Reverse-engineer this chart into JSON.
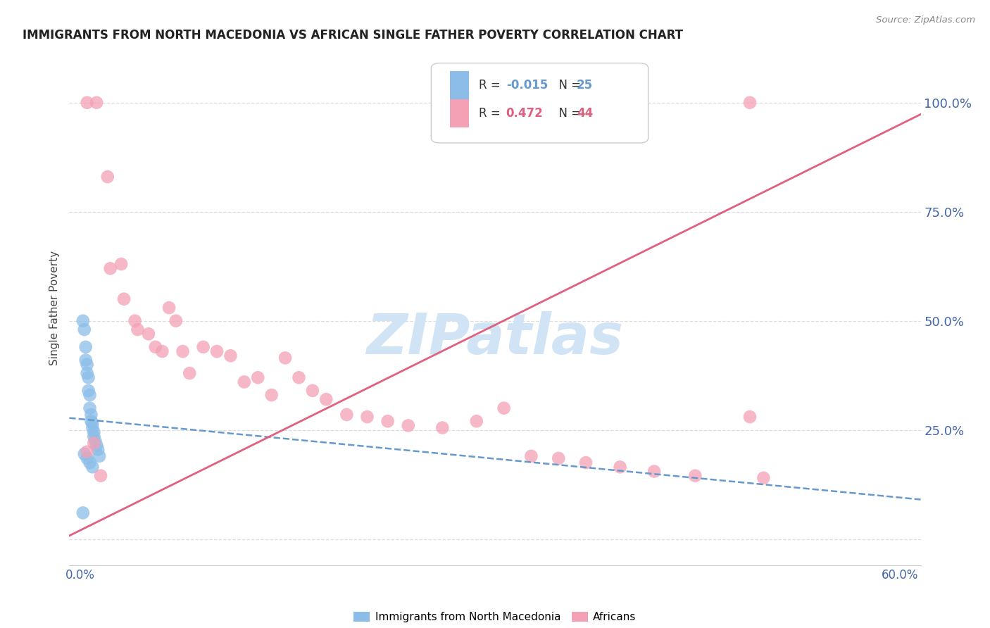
{
  "title": "IMMIGRANTS FROM NORTH MACEDONIA VS AFRICAN SINGLE FATHER POVERTY CORRELATION CHART",
  "source": "Source: ZipAtlas.com",
  "ylabel": "Single Father Poverty",
  "blue_R": -0.015,
  "blue_N": 25,
  "pink_R": 0.472,
  "pink_N": 44,
  "blue_color": "#8BBDE8",
  "pink_color": "#F4A0B5",
  "blue_trend_color": "#6699CC",
  "pink_trend_color": "#E06080",
  "watermark": "ZIPatlas",
  "watermark_color": "#D0E4F5",
  "legend_label_blue": "Immigrants from North Macedonia",
  "legend_label_pink": "Africans",
  "blue_x": [
    0.002,
    0.003,
    0.004,
    0.004,
    0.005,
    0.005,
    0.006,
    0.006,
    0.007,
    0.007,
    0.008,
    0.008,
    0.009,
    0.009,
    0.01,
    0.01,
    0.011,
    0.012,
    0.013,
    0.014,
    0.003,
    0.005,
    0.007,
    0.009,
    0.002
  ],
  "blue_y": [
    0.5,
    0.48,
    0.44,
    0.41,
    0.4,
    0.38,
    0.37,
    0.34,
    0.33,
    0.3,
    0.285,
    0.27,
    0.265,
    0.255,
    0.245,
    0.235,
    0.225,
    0.215,
    0.205,
    0.19,
    0.195,
    0.185,
    0.175,
    0.165,
    0.06
  ],
  "pink_x": [
    0.005,
    0.012,
    0.02,
    0.022,
    0.03,
    0.032,
    0.04,
    0.042,
    0.05,
    0.055,
    0.06,
    0.065,
    0.07,
    0.075,
    0.08,
    0.09,
    0.1,
    0.11,
    0.12,
    0.13,
    0.14,
    0.15,
    0.16,
    0.17,
    0.18,
    0.195,
    0.21,
    0.225,
    0.24,
    0.265,
    0.29,
    0.31,
    0.33,
    0.35,
    0.37,
    0.395,
    0.42,
    0.45,
    0.49,
    0.5,
    0.005,
    0.01,
    0.015,
    0.49
  ],
  "pink_y": [
    1.0,
    1.0,
    0.83,
    0.62,
    0.63,
    0.55,
    0.5,
    0.48,
    0.47,
    0.44,
    0.43,
    0.53,
    0.5,
    0.43,
    0.38,
    0.44,
    0.43,
    0.42,
    0.36,
    0.37,
    0.33,
    0.415,
    0.37,
    0.34,
    0.32,
    0.285,
    0.28,
    0.27,
    0.26,
    0.255,
    0.27,
    0.3,
    0.19,
    0.185,
    0.175,
    0.165,
    0.155,
    0.145,
    1.0,
    0.14,
    0.2,
    0.22,
    0.145,
    0.28
  ],
  "xlim": [
    -0.008,
    0.615
  ],
  "ylim": [
    -0.06,
    1.12
  ],
  "xtick_vals": [
    0.0,
    0.1,
    0.2,
    0.3,
    0.4,
    0.5,
    0.6
  ],
  "xtick_labels": [
    "0.0%",
    "",
    "",
    "",
    "",
    "",
    "60.0%"
  ],
  "ytick_vals": [
    0.0,
    0.25,
    0.5,
    0.75,
    1.0
  ],
  "ytick_labels_right": [
    "",
    "25.0%",
    "50.0%",
    "75.0%",
    "100.0%"
  ],
  "background_color": "#FFFFFF",
  "grid_color": "#DDDDDD",
  "tick_color": "#4466AA",
  "right_tick_color": "#4466AA"
}
